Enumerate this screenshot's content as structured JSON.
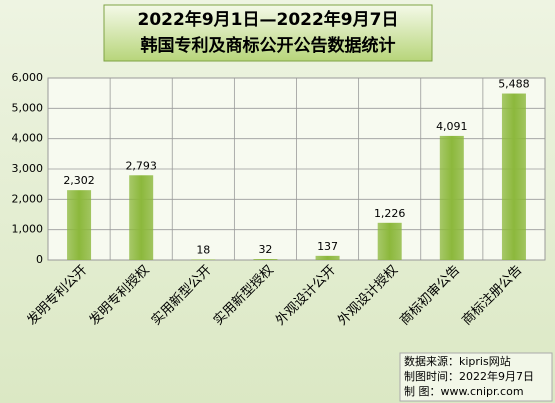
{
  "chart_data": {
    "type": "bar",
    "title": "2022年9月1日—2022年9月7日",
    "subtitle": "韩国专利及商标公开公告数据统计",
    "categories": [
      "发明专利公开",
      "发明专利授权",
      "实用新型公开",
      "实用新型授权",
      "外观设计公开",
      "外观设计授权",
      "商标初审公告",
      "商标注册公告"
    ],
    "values": [
      2302,
      2793,
      18,
      32,
      137,
      1226,
      4091,
      5488
    ],
    "value_labels": [
      "2,302",
      "2,793",
      "18",
      "32",
      "137",
      "1,226",
      "4,091",
      "5,488"
    ],
    "color": "#8cb83c",
    "ylim": [
      0,
      6000
    ],
    "yticks": [
      0,
      {
        "value": 1000,
        "label": "1,000"
      },
      {
        "value": 2000,
        "label": "2,000"
      },
      {
        "value": 3000,
        "label": "3,000"
      },
      {
        "value": 4000,
        "label": "4,000"
      },
      {
        "value": 5000,
        "label": "5,000"
      },
      {
        "value": 6000,
        "label": "6,000"
      }
    ],
    "grid": true,
    "annotations": [
      "数据来源：kipris网站",
      "制图时间：2022年9月7日",
      "制    图：www.cnipr.com"
    ]
  }
}
